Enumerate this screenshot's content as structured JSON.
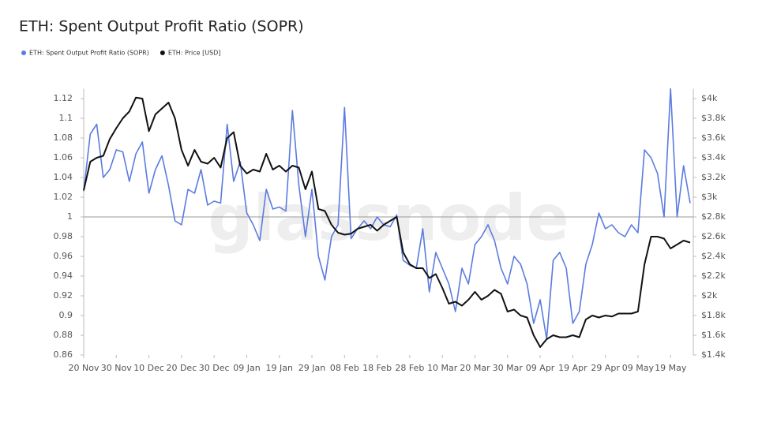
{
  "chart_data": {
    "type": "line",
    "title": "ETH: Spent Output Profit Ratio (SOPR)",
    "watermark": "glassnode",
    "categories": [
      "20 Nov",
      null,
      null,
      null,
      null,
      "30 Nov",
      null,
      null,
      null,
      null,
      "10 Dec",
      null,
      null,
      null,
      null,
      "20 Dec",
      null,
      null,
      null,
      null,
      "30 Dec",
      null,
      null,
      null,
      null,
      "09 Jan",
      null,
      null,
      null,
      null,
      "19 Jan",
      null,
      null,
      null,
      null,
      "29 Jan",
      null,
      null,
      null,
      null,
      "08 Feb",
      null,
      null,
      null,
      null,
      "18 Feb",
      null,
      null,
      null,
      null,
      "28 Feb",
      null,
      null,
      null,
      null,
      "10 Mar",
      null,
      null,
      null,
      null,
      "20 Mar",
      null,
      null,
      null,
      null,
      "30 Mar",
      null,
      null,
      null,
      null,
      "09 Apr",
      null,
      null,
      null,
      null,
      "19 Apr",
      null,
      null,
      null,
      null,
      "29 Apr",
      null,
      null,
      null,
      null,
      "09 May",
      null,
      null,
      null,
      null,
      "19 May",
      null,
      null,
      null
    ],
    "series": [
      {
        "name": "ETH: Spent Output Profit Ratio (SOPR)",
        "color": "#5b7be0",
        "axis": "y",
        "values": [
          1.026,
          1.084,
          1.094,
          1.04,
          1.048,
          1.068,
          1.066,
          1.036,
          1.064,
          1.076,
          1.024,
          1.048,
          1.062,
          1.032,
          0.996,
          0.992,
          1.028,
          1.024,
          1.048,
          1.012,
          1.016,
          1.014,
          1.094,
          1.036,
          1.056,
          1.004,
          0.992,
          0.976,
          1.028,
          1.008,
          1.01,
          1.006,
          1.108,
          1.032,
          0.98,
          1.028,
          0.96,
          0.936,
          0.98,
          0.992,
          1.111,
          0.978,
          0.988,
          0.996,
          0.988,
          1.0,
          0.992,
          0.99,
          1.002,
          0.956,
          0.951,
          0.948,
          0.988,
          0.924,
          0.964,
          0.948,
          0.932,
          0.904,
          0.948,
          0.932,
          0.972,
          0.98,
          0.992,
          0.976,
          0.948,
          0.932,
          0.96,
          0.952,
          0.932,
          0.892,
          0.916,
          0.876,
          0.956,
          0.964,
          0.948,
          0.892,
          0.904,
          0.952,
          0.972,
          1.004,
          0.988,
          0.992,
          0.984,
          0.98,
          0.992,
          0.984,
          1.068,
          1.06,
          1.044,
          1.0,
          1.13,
          1.0,
          1.052,
          1.014
        ]
      },
      {
        "name": "ETH: Price [USD]",
        "color": "#111111",
        "axis": "y2",
        "values": [
          3070,
          3360,
          3400,
          3420,
          3590,
          3700,
          3800,
          3870,
          4010,
          4000,
          3670,
          3840,
          3900,
          3960,
          3800,
          3480,
          3320,
          3480,
          3360,
          3340,
          3400,
          3300,
          3600,
          3660,
          3320,
          3240,
          3280,
          3260,
          3440,
          3280,
          3320,
          3260,
          3320,
          3300,
          3080,
          3260,
          2880,
          2860,
          2720,
          2640,
          2620,
          2630,
          2680,
          2700,
          2720,
          2660,
          2720,
          2760,
          2800,
          2440,
          2320,
          2280,
          2280,
          2180,
          2220,
          2080,
          1920,
          1940,
          1900,
          1960,
          2040,
          1960,
          2000,
          2060,
          2020,
          1840,
          1860,
          1800,
          1780,
          1600,
          1480,
          1560,
          1600,
          1580,
          1580,
          1600,
          1580,
          1760,
          1800,
          1780,
          1800,
          1790,
          1820,
          1820,
          1820,
          1840,
          2320,
          2600,
          2600,
          2580,
          2480,
          2520,
          2560,
          2540
        ]
      }
    ],
    "ylim": [
      0.86,
      1.13
    ],
    "yticks": [
      0.86,
      0.88,
      0.9,
      0.92,
      0.94,
      0.96,
      0.98,
      1,
      1.02,
      1.04,
      1.06,
      1.08,
      1.1,
      1.12
    ],
    "y2lim": [
      1400,
      4100
    ],
    "y2ticks": [
      {
        "value": 1400,
        "label": "$1.4k"
      },
      {
        "value": 1600,
        "label": "$1.6k"
      },
      {
        "value": 1800,
        "label": "$1.8k"
      },
      {
        "value": 2000,
        "label": "$2k"
      },
      {
        "value": 2200,
        "label": "$2.2k"
      },
      {
        "value": 2400,
        "label": "$2.4k"
      },
      {
        "value": 2600,
        "label": "$2.6k"
      },
      {
        "value": 2800,
        "label": "$2.8k"
      },
      {
        "value": 3000,
        "label": "$3k"
      },
      {
        "value": 3200,
        "label": "$3.2k"
      },
      {
        "value": 3400,
        "label": "$3.4k"
      },
      {
        "value": 3600,
        "label": "$3.6k"
      },
      {
        "value": 3800,
        "label": "$3.8k"
      },
      {
        "value": 4000,
        "label": "$4k"
      }
    ],
    "reference_line": 1,
    "grid": false,
    "legend": "top-left"
  }
}
